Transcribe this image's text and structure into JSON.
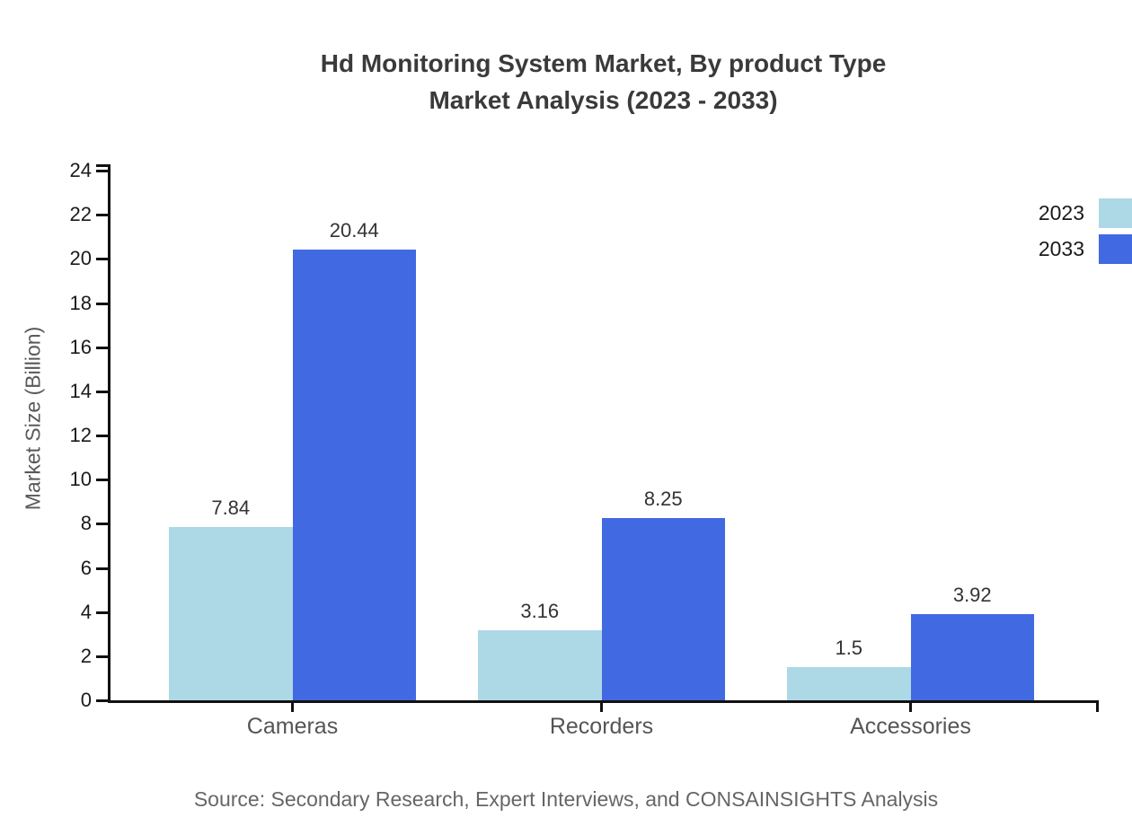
{
  "page": {
    "title_line1": "Hd Monitoring System Market, By product Type",
    "title_line2": "Market Analysis (2023 - 2033)",
    "source": "Source: Secondary Research, Expert Interviews, and CONSAINSIGHTS Analysis"
  },
  "chart_data": {
    "type": "bar",
    "title": "Hd Monitoring System Market, By product Type Market Analysis (2023 - 2033)",
    "categories": [
      "Cameras",
      "Recorders",
      "Accessories"
    ],
    "series": [
      {
        "name": "2023",
        "color": "#add8e6",
        "values": [
          7.84,
          3.16,
          1.5
        ]
      },
      {
        "name": "2033",
        "color": "#4169e1",
        "values": [
          20.44,
          8.25,
          3.92
        ]
      }
    ],
    "xlabel": "",
    "ylabel": "Market Size (Billion)",
    "ylim": [
      0,
      24
    ],
    "ytick_step": 2,
    "grid": false,
    "legend_position": "top-right",
    "axis_color": "#111111"
  }
}
